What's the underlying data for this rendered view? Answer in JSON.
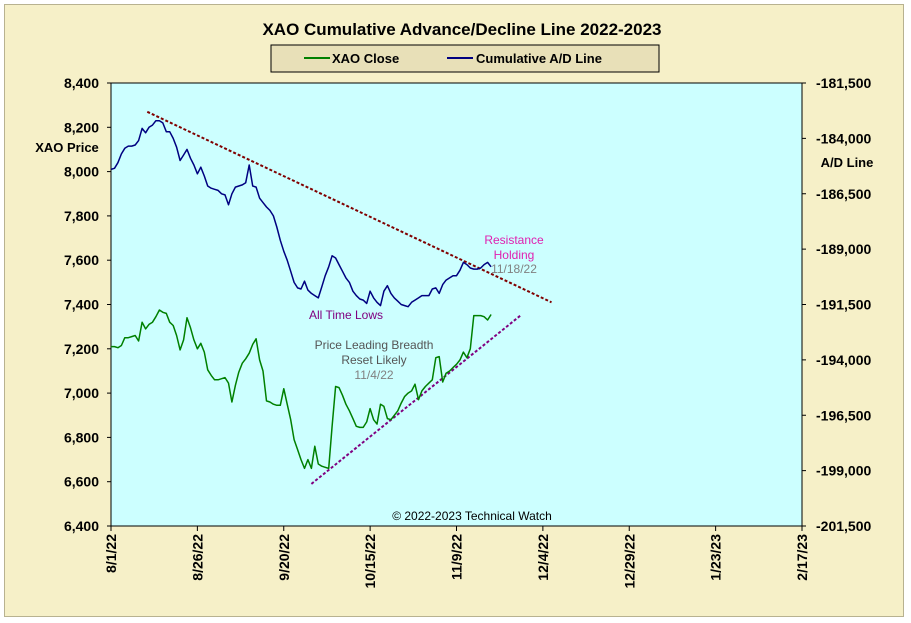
{
  "chart_data": {
    "type": "line",
    "title": "XAO Cumulative Advance/Decline Line 2022-2023",
    "ylabel_left": "XAO Price",
    "ylabel_right": "A/D Line",
    "ylim_left": [
      6400,
      8400
    ],
    "ylim_right": [
      -201500,
      -181500
    ],
    "yticks_left": [
      "8,400",
      "8,200",
      "8,000",
      "7,800",
      "7,600",
      "7,400",
      "7,200",
      "7,000",
      "6,800",
      "6,600",
      "6,400"
    ],
    "yticks_right": [
      "-181,500",
      "-184,000",
      "-186,500",
      "-189,000",
      "-191,500",
      "-194,000",
      "-196,500",
      "-199,000",
      "-201,500"
    ],
    "x_tick_labels": [
      "8/1/22",
      "8/26/22",
      "9/20/22",
      "10/15/22",
      "11/9/22",
      "12/4/22",
      "12/29/22",
      "1/23/23",
      "2/17/23"
    ],
    "x_tick_days": [
      0,
      25,
      50,
      75,
      100,
      125,
      150,
      175,
      200
    ],
    "x_range_days": [
      0,
      200
    ],
    "series": [
      {
        "name": "XAO Close",
        "axis": "left",
        "color": "#008000",
        "x": [
          0,
          1,
          2,
          3,
          4,
          5,
          6,
          7,
          8,
          9,
          10,
          11,
          12,
          13,
          14,
          15,
          16,
          17,
          18,
          19,
          20,
          21,
          22,
          23,
          24,
          25,
          26,
          27,
          28,
          29,
          30,
          31,
          32,
          33,
          34,
          35,
          36,
          37,
          38,
          39,
          40,
          41,
          42,
          43,
          44,
          45,
          46,
          47,
          48,
          49,
          50,
          51,
          52,
          53,
          54,
          55,
          56,
          57,
          58,
          59,
          60,
          61,
          62,
          63,
          64,
          65,
          66,
          67,
          68,
          69,
          70,
          71,
          72,
          73,
          74,
          75,
          76,
          77,
          78,
          79,
          80,
          81,
          82,
          83,
          84,
          85,
          86,
          87,
          88,
          89,
          90,
          91,
          92,
          93,
          94,
          95,
          96,
          97,
          98,
          99,
          100,
          101,
          102,
          103,
          104,
          105,
          106,
          107,
          108,
          109,
          110
        ],
        "values": [
          7210,
          7210,
          7205,
          7215,
          7250,
          7250,
          7255,
          7260,
          7235,
          7320,
          7290,
          7310,
          7320,
          7345,
          7375,
          7365,
          7360,
          7320,
          7305,
          7260,
          7195,
          7240,
          7340,
          7295,
          7240,
          7200,
          7225,
          7185,
          7105,
          7080,
          7060,
          7060,
          7065,
          7070,
          7045,
          6960,
          7035,
          7095,
          7135,
          7155,
          7180,
          7220,
          7245,
          7150,
          7100,
          6965,
          6960,
          6950,
          6945,
          6945,
          7020,
          6950,
          6880,
          6790,
          6745,
          6700,
          6660,
          6700,
          6660,
          6760,
          6680,
          6670,
          6665,
          6660,
          6850,
          7030,
          7025,
          6990,
          6950,
          6920,
          6885,
          6850,
          6845,
          6845,
          6870,
          6930,
          6880,
          6860,
          6950,
          6940,
          6885,
          6880,
          6900,
          6920,
          6955,
          6985,
          7000,
          7010,
          7040,
          6970,
          7010,
          7030,
          7045,
          7060,
          7160,
          7165,
          7050,
          7090,
          7100,
          7115,
          7130,
          7150,
          7185,
          7160,
          7200,
          7350,
          7350,
          7350,
          7345,
          7330,
          7355
        ]
      },
      {
        "name": "Cumulative A/D Line",
        "axis": "right",
        "color": "#000080",
        "x": [
          0,
          1,
          2,
          3,
          4,
          5,
          6,
          7,
          8,
          9,
          10,
          11,
          12,
          13,
          14,
          15,
          16,
          17,
          18,
          19,
          20,
          21,
          22,
          23,
          24,
          25,
          26,
          27,
          28,
          29,
          30,
          31,
          32,
          33,
          34,
          35,
          36,
          37,
          38,
          39,
          40,
          41,
          42,
          43,
          44,
          45,
          46,
          47,
          48,
          49,
          50,
          51,
          52,
          53,
          54,
          55,
          56,
          57,
          58,
          59,
          60,
          61,
          62,
          63,
          64,
          65,
          66,
          67,
          68,
          69,
          70,
          71,
          72,
          73,
          74,
          75,
          76,
          77,
          78,
          79,
          80,
          81,
          82,
          83,
          84,
          85,
          86,
          87,
          88,
          89,
          90,
          91,
          92,
          93,
          94,
          95,
          96,
          97,
          98,
          99,
          100,
          101,
          102,
          103,
          104,
          105,
          106,
          107,
          108,
          109,
          110
        ],
        "values": [
          -185400,
          -185350,
          -185100,
          -184700,
          -184450,
          -184350,
          -184350,
          -184300,
          -184100,
          -183550,
          -183750,
          -183500,
          -183400,
          -183200,
          -183200,
          -183300,
          -183700,
          -183700,
          -184000,
          -184400,
          -185000,
          -184750,
          -184500,
          -184900,
          -185200,
          -185600,
          -185300,
          -185700,
          -186150,
          -186250,
          -186300,
          -186350,
          -186500,
          -186550,
          -187000,
          -186500,
          -186200,
          -186150,
          -186100,
          -186000,
          -185200,
          -186150,
          -186200,
          -186700,
          -186900,
          -187100,
          -187250,
          -187500,
          -188000,
          -188600,
          -189100,
          -189500,
          -190000,
          -190500,
          -190750,
          -190800,
          -190450,
          -190850,
          -191000,
          -191100,
          -191200,
          -190700,
          -190200,
          -189800,
          -189300,
          -189400,
          -189700,
          -190000,
          -190300,
          -190500,
          -190900,
          -191100,
          -191250,
          -191300,
          -191450,
          -190900,
          -191200,
          -191400,
          -191550,
          -190900,
          -190650,
          -191000,
          -191200,
          -191350,
          -191500,
          -191550,
          -191600,
          -191400,
          -191300,
          -191200,
          -191100,
          -191100,
          -191100,
          -190800,
          -190750,
          -191000,
          -190600,
          -190400,
          -190300,
          -190200,
          -190200,
          -189950,
          -189600,
          -189700,
          -189850,
          -189900,
          -189900,
          -189850,
          -189700,
          -189600,
          -189800
        ]
      }
    ],
    "trendlines": [
      {
        "axis": "left",
        "x": [
          10.5,
          127.5
        ],
        "values": [
          8270,
          7410
        ],
        "color": "#800000",
        "dash": true
      },
      {
        "axis": "left",
        "x": [
          58,
          118.5
        ],
        "values": [
          6590,
          7350
        ],
        "color": "#800080",
        "dash": true
      }
    ],
    "annotations": [
      {
        "text": "Resistance",
        "color": "#e020b0"
      },
      {
        "text": "Holding",
        "color": "#e020b0"
      },
      {
        "text": "11/18/22",
        "color": "#808080"
      },
      {
        "text": "All Time Lows",
        "color": "#800080"
      },
      {
        "text": "Price Leading Breadth",
        "color": "#555555"
      },
      {
        "text": "Reset Likely",
        "color": "#555555"
      },
      {
        "text": "11/4/22",
        "color": "#808080"
      },
      {
        "text": "© 2022-2023  Technical Watch",
        "color": "#000000"
      }
    ],
    "legend_position": "top-center",
    "grid": false,
    "plot_background": "#ccffff"
  }
}
